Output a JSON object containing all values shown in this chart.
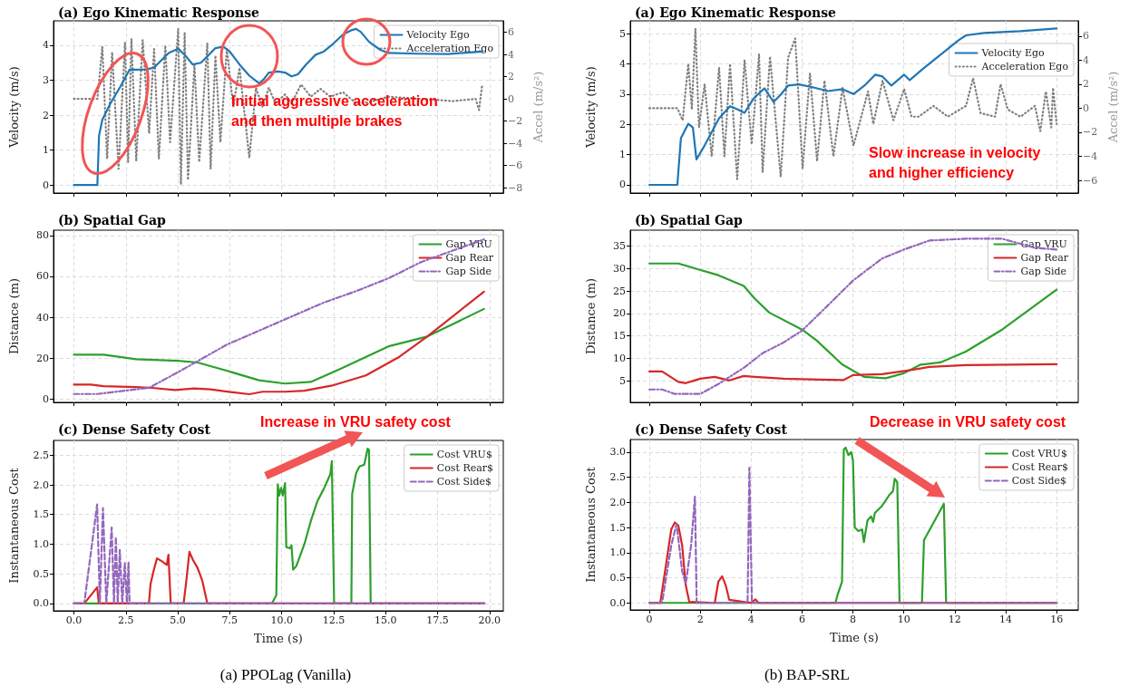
{
  "chart_data": [
    {
      "type": "line",
      "title": "(a) Ego Kinematic Response",
      "ylabel": "Velocity (m/s)",
      "y2label": "Accel (m/s²)",
      "xlim": [
        -0.98,
        20.66
      ],
      "xticks": [
        0,
        2.5,
        5,
        7.5,
        10,
        12.5,
        15,
        17.5,
        20
      ],
      "ylim": [
        -0.23,
        4.7
      ],
      "yticks": [
        0,
        1,
        2,
        3,
        4
      ],
      "y2lim": [
        -8.48,
        7.03
      ],
      "y2ticks": [
        {
          "value": -8,
          "label": "−8"
        },
        {
          "value": -6,
          "label": "−6"
        },
        {
          "value": -4,
          "label": "−4"
        },
        {
          "value": -2,
          "label": "−2"
        },
        0,
        2,
        4,
        6
      ],
      "tick_labels": "y",
      "grid": true,
      "legend": "top right",
      "marker": "none",
      "annotations": [
        "Initial aggressive acceleration\nand then multiple brakes"
      ],
      "series": [
        {
          "name": "Velocity Ego",
          "color": "#1f77b4",
          "line_style": "solid",
          "x": [
            0,
            1.13,
            1.21,
            1.37,
            1.76,
            2.22,
            2.69,
            3.0,
            3.47,
            3.86,
            4.09,
            4.56,
            5.02,
            5.33,
            5.72,
            6.11,
            6.42,
            6.81,
            7.2,
            7.5,
            7.97,
            8.44,
            8.91,
            9.14,
            9.38,
            9.84,
            10.16,
            10.47,
            10.78,
            11.17,
            11.63,
            12.02,
            12.49,
            12.95,
            13.34,
            13.58,
            13.81,
            14.2,
            14.74,
            15.13,
            16.5,
            18.0,
            19.64
          ],
          "values": [
            0,
            0,
            1.41,
            1.87,
            2.34,
            2.8,
            3.31,
            3.3,
            3.31,
            3.36,
            3.5,
            3.78,
            3.9,
            3.73,
            3.45,
            3.5,
            3.68,
            3.92,
            3.96,
            3.82,
            3.45,
            3.13,
            2.91,
            3.03,
            3.22,
            3.25,
            3.22,
            3.11,
            3.17,
            3.45,
            3.73,
            3.82,
            4.05,
            4.31,
            4.43,
            4.47,
            4.38,
            4.1,
            3.87,
            3.78,
            3.76,
            3.75,
            3.82
          ]
        },
        {
          "name": "Acceleration Ego",
          "color": "#808080",
          "line_style": "dotted",
          "axis": "y2",
          "x": [
            0,
            1.13,
            1.37,
            1.6,
            1.84,
            2.15,
            2.46,
            2.61,
            2.77,
            3.0,
            3.31,
            3.62,
            3.86,
            4.09,
            4.4,
            4.63,
            5.02,
            5.15,
            5.33,
            5.49,
            5.8,
            6.03,
            6.42,
            6.58,
            6.81,
            7.05,
            7.36,
            7.67,
            7.97,
            8.44,
            8.76,
            9.07,
            9.38,
            9.69,
            10.16,
            10.47,
            10.93,
            11.4,
            11.87,
            12.33,
            12.95,
            13.58,
            14.2,
            15.13,
            16.69,
            18.24,
            19.33,
            19.49,
            19.64
          ],
          "values": [
            0,
            0,
            4.7,
            -5.4,
            4.2,
            -6.3,
            5.1,
            -5.7,
            5.4,
            -5.6,
            5.3,
            -3.1,
            4.5,
            -5.4,
            4.8,
            -3.9,
            6.3,
            -7.7,
            6.0,
            -7.3,
            3.1,
            -5.7,
            5.0,
            -6.3,
            3.9,
            -3.9,
            4.5,
            -0.7,
            2.8,
            -5.3,
            1.0,
            -0.7,
            1.0,
            -0.4,
            0.4,
            -0.4,
            1.3,
            0.2,
            0.9,
            0.2,
            0.6,
            -0.4,
            -0.3,
            0.2,
            0,
            -0.2,
            0,
            -1.0,
            1.2
          ]
        }
      ]
    },
    {
      "type": "line",
      "title": "(a) Ego Kinematic Response",
      "ylabel": "Velocity (m/s)",
      "y2label": "Accel (m/s²)",
      "xlim": [
        -0.75,
        16.85
      ],
      "xticks": [
        0,
        2,
        4,
        6,
        8,
        10,
        12,
        14,
        16
      ],
      "ylim": [
        -0.27,
        5.42
      ],
      "yticks": [
        0,
        1,
        2,
        3,
        4,
        5
      ],
      "y2lim": [
        -7.05,
        7.27
      ],
      "y2ticks": [
        {
          "value": -6,
          "label": "−6"
        },
        {
          "value": -4,
          "label": "−4"
        },
        {
          "value": -2,
          "label": "−2"
        },
        0,
        2,
        4,
        6
      ],
      "tick_labels": "y",
      "grid": true,
      "legend": "top right",
      "marker": "none",
      "annotations": [
        "Slow increase in velocity\nand higher efficiency"
      ],
      "series": [
        {
          "name": "Velocity Ego",
          "color": "#1f77b4",
          "line_style": "solid",
          "x": [
            0,
            1.1,
            1.24,
            1.53,
            1.71,
            1.85,
            2.17,
            2.74,
            3.17,
            3.45,
            3.74,
            4.09,
            4.52,
            4.88,
            5.16,
            5.45,
            5.88,
            6.45,
            7.02,
            7.59,
            8.02,
            8.45,
            8.87,
            9.16,
            9.51,
            10.01,
            10.23,
            10.73,
            11.44,
            12.15,
            12.44,
            13.15,
            14.58,
            16.0
          ],
          "values": [
            0,
            0,
            1.54,
            2.02,
            1.9,
            0.84,
            1.3,
            2.2,
            2.6,
            2.5,
            2.38,
            2.85,
            3.19,
            2.74,
            2.98,
            3.28,
            3.32,
            3.22,
            3.1,
            3.16,
            3.0,
            3.28,
            3.64,
            3.58,
            3.28,
            3.64,
            3.46,
            3.82,
            4.3,
            4.78,
            4.94,
            5.02,
            5.08,
            5.17
          ]
        },
        {
          "name": "Acceleration Ego",
          "color": "#808080",
          "line_style": "dotted",
          "axis": "y2",
          "x": [
            0,
            1.1,
            1.31,
            1.53,
            1.67,
            1.81,
            1.95,
            2.17,
            2.45,
            2.74,
            2.95,
            3.17,
            3.45,
            3.74,
            4.02,
            4.31,
            4.45,
            4.74,
            5.16,
            5.45,
            5.73,
            6.02,
            6.31,
            6.59,
            6.88,
            7.23,
            7.59,
            8.02,
            8.59,
            8.8,
            9.16,
            9.59,
            10.01,
            10.3,
            10.58,
            11.16,
            11.73,
            12.44,
            12.72,
            13.01,
            13.58,
            13.8,
            14.08,
            14.58,
            15.15,
            15.36,
            15.58,
            15.79,
            15.86,
            16.0
          ],
          "values": [
            0,
            0,
            -1.0,
            3.7,
            -0.1,
            6.6,
            -1.6,
            2.0,
            -4.0,
            3.4,
            -4.0,
            3.7,
            -5.9,
            4.0,
            -3.0,
            4.5,
            -5.3,
            4.3,
            -5.7,
            4.2,
            5.8,
            -5.0,
            2.9,
            -4.4,
            2.3,
            -4.0,
            1.7,
            -3.1,
            1.4,
            -1.3,
            2.3,
            -1.0,
            1.6,
            -0.7,
            -0.7,
            0.2,
            -0.7,
            0.2,
            2.5,
            -0.4,
            -0.7,
            2.0,
            -0.1,
            -0.7,
            0.2,
            -1.9,
            1.4,
            -1.6,
            1.7,
            -1.3
          ]
        }
      ]
    },
    {
      "type": "line",
      "title": "(b) Spatial Gap",
      "ylabel": "Distance (m)",
      "xlim": [
        -0.98,
        20.66
      ],
      "xticks": [
        0,
        2.5,
        5,
        7.5,
        10,
        12.5,
        15,
        17.5,
        20
      ],
      "ylim": [
        -1.6,
        82.6
      ],
      "yticks": [
        0,
        20,
        40,
        60,
        80
      ],
      "tick_labels": "y",
      "grid": true,
      "legend": "top right",
      "marker": "none",
      "series": [
        {
          "name": "Gap VRU",
          "color": "#2ca02c",
          "line_style": "solid",
          "x": [
            0,
            1.43,
            2.99,
            5.0,
            5.95,
            7.35,
            8.91,
            10.16,
            11.4,
            12.8,
            15.14,
            17.0,
            19.73
          ],
          "values": [
            21.7,
            21.7,
            19.5,
            18.7,
            17.9,
            13.9,
            9.2,
            7.6,
            8.4,
            14.7,
            25.8,
            30.6,
            44.1
          ]
        },
        {
          "name": "Gap Rear",
          "color": "#d62728",
          "line_style": "solid",
          "x": [
            0,
            0.81,
            1.43,
            2.99,
            3.77,
            4.86,
            5.79,
            6.57,
            7.66,
            8.44,
            9.07,
            10.16,
            11.09,
            12.49,
            14.05,
            15.6,
            17.0,
            19.73
          ],
          "values": [
            7.1,
            7.1,
            6.3,
            5.9,
            5.5,
            4.4,
            5.2,
            4.8,
            3.3,
            2.4,
            3.6,
            3.6,
            4.1,
            6.8,
            11.6,
            20.3,
            30.6,
            52.5
          ]
        },
        {
          "name": "Gap Side",
          "color": "#9467bd",
          "line_style": "dashdot",
          "x": [
            0,
            1.12,
            2.68,
            3.61,
            5.02,
            7.35,
            9.69,
            12.02,
            13.58,
            15.14,
            16.7,
            19.73
          ],
          "values": [
            2.5,
            2.5,
            4.4,
            5.5,
            13.2,
            26.6,
            36.9,
            47.2,
            52.8,
            59.1,
            67,
            78.1
          ]
        }
      ]
    },
    {
      "type": "line",
      "title": "(b) Spatial Gap",
      "ylabel": "Distance (m)",
      "xlim": [
        -0.75,
        16.85
      ],
      "xticks": [
        0,
        2,
        4,
        6,
        8,
        10,
        12,
        14,
        16
      ],
      "ylim": [
        0.23,
        38.5
      ],
      "yticks": [
        5,
        10,
        15,
        20,
        25,
        30,
        35
      ],
      "tick_labels": "y",
      "grid": true,
      "legend": "top right",
      "marker": "none",
      "series": [
        {
          "name": "Gap VRU",
          "color": "#2ca02c",
          "line_style": "solid",
          "x": [
            0,
            1.14,
            1.86,
            2.71,
            3.71,
            4.14,
            4.71,
            6.0,
            6.57,
            7.57,
            8.43,
            9.29,
            10.0,
            10.64,
            11.43,
            12.43,
            13.86,
            16.0
          ],
          "values": [
            31.1,
            31.1,
            29.9,
            28.5,
            26.1,
            23.3,
            20.2,
            16.4,
            14.0,
            8.7,
            5.9,
            5.6,
            6.7,
            8.6,
            9.1,
            11.5,
            16.4,
            25.3
          ]
        },
        {
          "name": "Gap Rear",
          "color": "#d62728",
          "line_style": "solid",
          "x": [
            0,
            0.5,
            1.14,
            1.43,
            2.0,
            2.57,
            3.14,
            3.71,
            4.14,
            5.29,
            6.71,
            7.64,
            8.0,
            9.14,
            10.14,
            11.0,
            12.43,
            16.0
          ],
          "values": [
            7.1,
            7.1,
            4.8,
            4.5,
            5.5,
            5.9,
            5.1,
            6.1,
            5.9,
            5.5,
            5.3,
            5.2,
            6.3,
            6.5,
            7.3,
            8.1,
            8.5,
            8.7
          ]
        },
        {
          "name": "Gap Side",
          "color": "#9467bd",
          "line_style": "dashdot",
          "x": [
            0,
            0.5,
            1.0,
            2.0,
            2.71,
            3.71,
            4.43,
            5.29,
            6.0,
            7.0,
            8.0,
            9.14,
            10.0,
            11.0,
            12.43,
            13.86,
            15.14,
            16.0
          ],
          "values": [
            3.1,
            3.1,
            2.1,
            2.1,
            4.3,
            7.9,
            11.1,
            13.6,
            16.2,
            21.7,
            27.3,
            32.2,
            34.2,
            36.2,
            36.6,
            36.6,
            34.6,
            34.2
          ]
        }
      ]
    },
    {
      "type": "line",
      "title": "(c) Dense Safety Cost",
      "xlabel": "Time (s)",
      "ylabel": "Instantaneous Cost",
      "xlim": [
        -0.98,
        20.66
      ],
      "xticks": [
        {
          "value": 0,
          "label": "0.0"
        },
        {
          "value": 2.5,
          "label": "2.5"
        },
        {
          "value": 5,
          "label": "5.0"
        },
        {
          "value": 7.5,
          "label": "7.5"
        },
        {
          "value": 10,
          "label": "10.0"
        },
        {
          "value": 12.5,
          "label": "12.5"
        },
        {
          "value": 15,
          "label": "15.0"
        },
        {
          "value": 17.5,
          "label": "17.5"
        },
        {
          "value": 20,
          "label": "20.0"
        }
      ],
      "ylim": [
        -0.125,
        2.75
      ],
      "yticks": [
        {
          "value": 0,
          "label": "0.0"
        },
        {
          "value": 0.5,
          "label": "0.5"
        },
        {
          "value": 1,
          "label": "1.0"
        },
        {
          "value": 1.5,
          "label": "1.5"
        },
        {
          "value": 2,
          "label": "2.0"
        },
        {
          "value": 2.5,
          "label": "2.5"
        }
      ],
      "grid": true,
      "legend": "top right",
      "marker": "none",
      "annotations": [
        "Increase in VRU safety cost",
        "(a) PPOLag (Vanilla)"
      ],
      "series": [
        {
          "name": "Cost VRU$",
          "color": "#2ca02c",
          "line_style": "solid",
          "x": [
            0,
            9.53,
            9.74,
            9.81,
            9.88,
            9.97,
            10.05,
            10.16,
            10.22,
            10.39,
            10.47,
            10.55,
            10.7,
            11.09,
            11.4,
            11.71,
            12.02,
            12.34,
            12.41,
            12.52,
            13.35,
            13.39,
            13.58,
            13.74,
            13.97,
            14.13,
            14.2,
            14.28,
            19.75
          ],
          "values": [
            0,
            0,
            0.14,
            2.01,
            1.82,
            1.95,
            1.82,
            2.03,
            0.95,
            0.93,
            0.98,
            0.57,
            0.63,
            1.0,
            1.39,
            1.72,
            1.93,
            2.18,
            2.4,
            0,
            0,
            1.85,
            2.2,
            2.31,
            2.34,
            2.61,
            2.59,
            0,
            0
          ]
        },
        {
          "name": "Cost Rear$",
          "color": "#d62728",
          "line_style": "solid",
          "x": [
            0,
            0.5,
            1.12,
            1.2,
            3.61,
            3.69,
            3.85,
            4.0,
            4.24,
            4.47,
            4.55,
            4.66,
            5.28,
            5.4,
            5.56,
            5.72,
            5.95,
            6.18,
            6.42,
            19.75
          ],
          "values": [
            0,
            0,
            0.27,
            0,
            0,
            0.33,
            0.57,
            0.76,
            0.71,
            0.65,
            0.82,
            0,
            0,
            0.35,
            0.87,
            0.74,
            0.6,
            0.38,
            0,
            0
          ]
        },
        {
          "name": "Cost Side$",
          "color": "#9467bd",
          "line_style": "dashed",
          "x": [
            0,
            0.5,
            1.12,
            1.25,
            1.4,
            1.56,
            1.82,
            1.93,
            2.02,
            2.11,
            2.21,
            2.33,
            2.45,
            2.55,
            2.63,
            2.68,
            19.75
          ],
          "values": [
            0,
            0,
            1.67,
            0,
            1.61,
            0,
            1.28,
            0,
            1.12,
            0,
            0.9,
            0,
            0.68,
            0,
            0.69,
            0,
            0
          ]
        }
      ]
    },
    {
      "type": "line",
      "title": "(c) Dense Safety Cost",
      "xlabel": "Time (s)",
      "ylabel": "Instantaneous Cost",
      "xlim": [
        -0.75,
        16.85
      ],
      "xticks": [
        0,
        2,
        4,
        6,
        8,
        10,
        12,
        14,
        16
      ],
      "ylim": [
        -0.14,
        3.25
      ],
      "yticks": [
        {
          "value": 0,
          "label": "0.0"
        },
        {
          "value": 0.5,
          "label": "0.5"
        },
        {
          "value": 1,
          "label": "1.0"
        },
        {
          "value": 1.5,
          "label": "1.5"
        },
        {
          "value": 2,
          "label": "2.0"
        },
        {
          "value": 2.5,
          "label": "2.5"
        },
        {
          "value": 3,
          "label": "3.0"
        }
      ],
      "grid": true,
      "legend": "top right",
      "marker": "none",
      "annotations": [
        "Decrease in VRU safety cost",
        "(b) BAP-SRL"
      ],
      "series": [
        {
          "name": "Cost VRU$",
          "color": "#2ca02c",
          "line_style": "solid",
          "x": [
            0,
            7.31,
            7.4,
            7.57,
            7.64,
            7.71,
            7.82,
            7.93,
            8.0,
            8.07,
            8.21,
            8.36,
            8.43,
            8.57,
            8.71,
            8.79,
            8.86,
            9.14,
            9.29,
            9.43,
            9.57,
            9.64,
            9.74,
            9.83,
            10.71,
            10.79,
            11.57,
            11.66,
            16.0
          ],
          "values": [
            0,
            0,
            0.17,
            0.42,
            3.05,
            3.09,
            2.94,
            3.0,
            2.83,
            1.5,
            1.43,
            1.46,
            1.21,
            1.64,
            1.72,
            1.61,
            1.79,
            1.93,
            2.04,
            2.15,
            2.22,
            2.47,
            2.4,
            0,
            0,
            1.25,
            1.97,
            0,
            0
          ]
        },
        {
          "name": "Cost Rear$",
          "color": "#d62728",
          "line_style": "solid",
          "x": [
            0,
            0.43,
            0.64,
            0.86,
            1.0,
            1.14,
            1.29,
            1.43,
            1.57,
            2.57,
            2.71,
            2.86,
            3.0,
            3.14,
            4.0,
            4.17,
            4.29,
            16.0
          ],
          "values": [
            0,
            0,
            0.71,
            1.46,
            1.6,
            1.54,
            1.14,
            0.35,
            0.02,
            0,
            0.42,
            0.53,
            0.35,
            0.06,
            0,
            0.07,
            0,
            0
          ]
        },
        {
          "name": "Cost Side$",
          "color": "#9467bd",
          "line_style": "dashed",
          "x": [
            0,
            0.5,
            0.86,
            1.07,
            1.29,
            1.43,
            1.64,
            1.79,
            1.86,
            3.86,
            3.93,
            4.03,
            16.0
          ],
          "values": [
            0,
            0,
            1.14,
            1.57,
            0.63,
            0.38,
            1.14,
            2.11,
            0,
            0,
            2.69,
            0,
            0
          ]
        }
      ]
    }
  ]
}
